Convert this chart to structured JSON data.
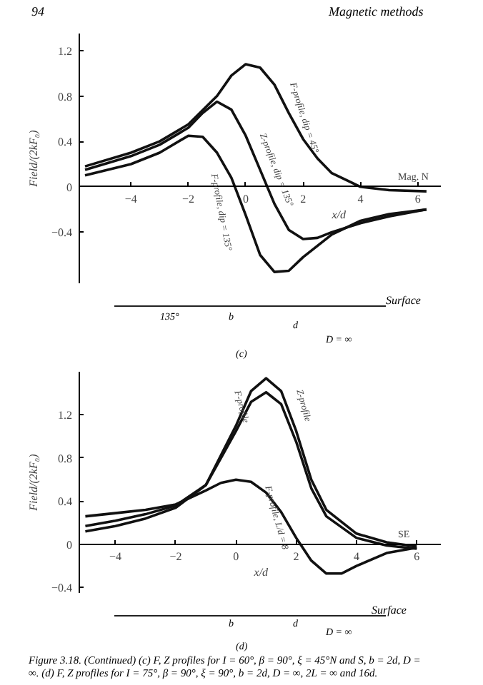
{
  "chart_data": [
    {
      "type": "line",
      "xlabel": "x/d",
      "ylabel": "Field/(2kF₀)",
      "xlim": [
        -5.8,
        6.8
      ],
      "ylim": [
        -0.85,
        1.35
      ],
      "xticks": [
        -4,
        -2,
        0,
        2,
        4,
        6
      ],
      "yticks": [
        -0.4,
        0,
        0.4,
        0.8,
        1.2
      ],
      "grid": false,
      "legend": false,
      "marker": "none",
      "line_style": "solid",
      "series": [
        {
          "name": "F-profile, dip = 45°",
          "color": "#111111",
          "x": [
            -5.6,
            -4,
            -3,
            -2,
            -1,
            -0.5,
            0,
            0.5,
            1,
            1.5,
            2,
            2.5,
            3,
            4,
            5,
            6.3
          ],
          "values": [
            0.18,
            0.3,
            0.4,
            0.55,
            0.8,
            0.98,
            1.08,
            1.05,
            0.9,
            0.65,
            0.42,
            0.25,
            0.12,
            0.0,
            -0.03,
            -0.04
          ]
        },
        {
          "name": "Z-profile, dip = 135°",
          "color": "#111111",
          "x": [
            -5.6,
            -4,
            -3,
            -2,
            -1.5,
            -1,
            -0.5,
            0,
            0.5,
            1,
            1.5,
            2,
            2.5,
            3,
            4,
            5,
            6.3
          ],
          "values": [
            0.15,
            0.27,
            0.37,
            0.52,
            0.65,
            0.75,
            0.68,
            0.45,
            0.15,
            -0.15,
            -0.38,
            -0.46,
            -0.45,
            -0.4,
            -0.32,
            -0.26,
            -0.2
          ]
        },
        {
          "name": "F-profile, dip = 135°",
          "color": "#111111",
          "x": [
            -5.6,
            -4,
            -3,
            -2,
            -1.5,
            -1,
            -0.5,
            0,
            0.5,
            1,
            1.5,
            2,
            3,
            4,
            5,
            6.3
          ],
          "values": [
            0.1,
            0.2,
            0.3,
            0.45,
            0.44,
            0.3,
            0.08,
            -0.25,
            -0.6,
            -0.75,
            -0.74,
            -0.62,
            -0.42,
            -0.3,
            -0.24,
            -0.2
          ]
        }
      ],
      "annotations": [
        "94",
        "Magnetic methods",
        "Mag. N",
        "Surface",
        "135°",
        "b",
        "d",
        "D = ∞",
        "(c)"
      ]
    },
    {
      "type": "line",
      "xlabel": "x/d",
      "ylabel": "Field/(2kF₀)",
      "xlim": [
        -5.2,
        6.8
      ],
      "ylim": [
        -0.45,
        1.6
      ],
      "xticks": [
        -4,
        -2,
        0,
        2,
        4,
        6
      ],
      "yticks": [
        -0.4,
        0,
        0.4,
        0.8,
        1.2
      ],
      "grid": false,
      "legend": false,
      "marker": "none",
      "line_style": "solid",
      "series": [
        {
          "name": "Z-profile",
          "color": "#111111",
          "x": [
            -5,
            -4,
            -3,
            -2,
            -1,
            0,
            0.5,
            1,
            1.5,
            2,
            2.5,
            3,
            4,
            5,
            6
          ],
          "values": [
            0.17,
            0.22,
            0.28,
            0.36,
            0.55,
            1.1,
            1.42,
            1.54,
            1.42,
            1.05,
            0.6,
            0.32,
            0.1,
            0.02,
            -0.02
          ]
        },
        {
          "name": "F-profile",
          "color": "#111111",
          "x": [
            -5,
            -4,
            -3,
            -2,
            -1,
            0,
            0.5,
            1,
            1.5,
            2,
            2.5,
            3,
            4,
            5,
            6
          ],
          "values": [
            0.12,
            0.17,
            0.24,
            0.34,
            0.55,
            1.05,
            1.32,
            1.41,
            1.3,
            0.95,
            0.52,
            0.26,
            0.06,
            -0.01,
            -0.04
          ]
        },
        {
          "name": "F-profile, L/d = 8",
          "color": "#111111",
          "x": [
            -5,
            -4,
            -3,
            -2,
            -1,
            -0.5,
            0,
            0.5,
            1,
            1.5,
            2,
            2.5,
            3,
            3.5,
            4,
            5,
            6
          ],
          "values": [
            0.26,
            0.29,
            0.32,
            0.37,
            0.5,
            0.57,
            0.6,
            0.58,
            0.48,
            0.3,
            0.06,
            -0.15,
            -0.27,
            -0.27,
            -0.2,
            -0.08,
            -0.03
          ]
        }
      ],
      "annotations": [
        "SE",
        "Surface",
        "b",
        "d",
        "D = ∞",
        "(d)",
        "Figure 3.18. (Continued) (c) F, Z profiles for I = 60°, β = 90°, ξ = 45°N and S, b = 2d, D = ∞. (d) F, Z profiles for I = 75°, β = 90°, ξ = 90°, b = 2d, D = ∞, 2L = ∞ and 16d."
      ]
    }
  ]
}
